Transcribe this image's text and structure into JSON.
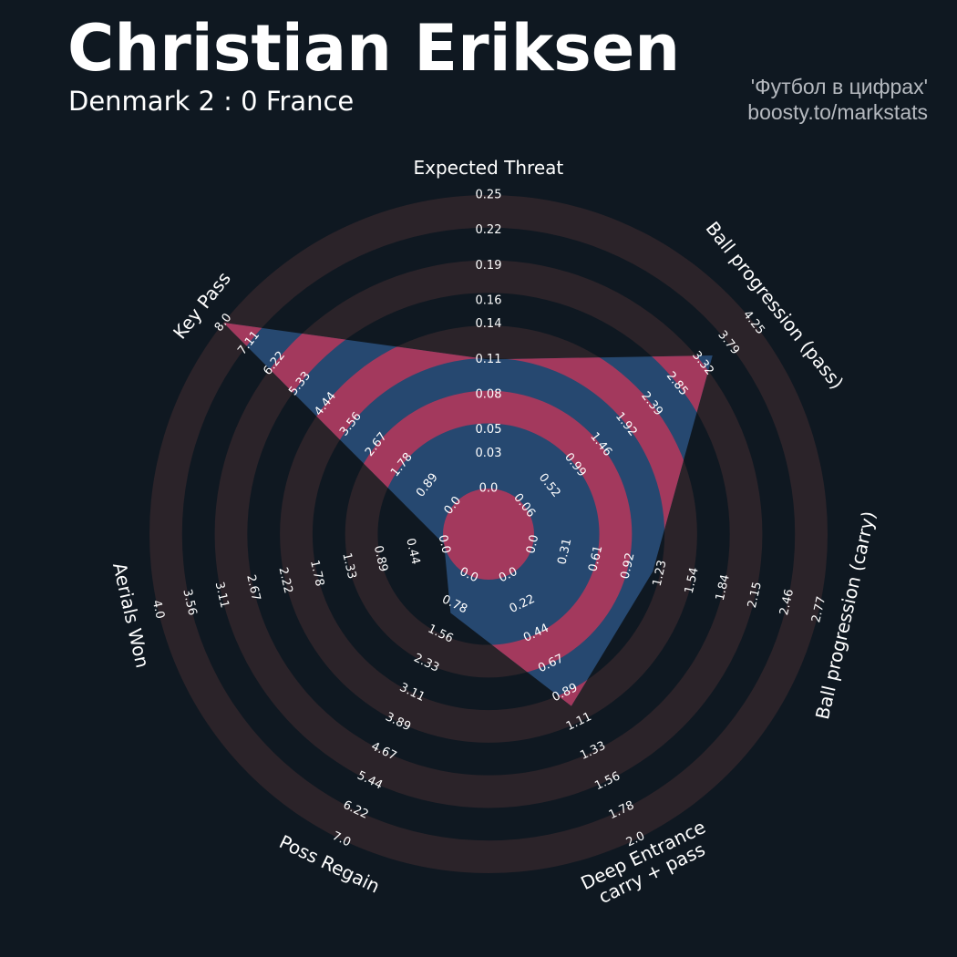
{
  "credits": [
    "'Футбол в цифрах'",
    "boosty.to/markstats"
  ],
  "chart_data": {
    "type": "radar",
    "title": "Christian Eriksen",
    "subtitle": "Denmark 2 : 0 France",
    "categories": [
      "Expected Threat",
      "Ball progression (pass)",
      "Ball progression (carry)",
      "Deep Entrance\ncarry + pass",
      "Poss Regain",
      "Aerials Won",
      "Key Pass"
    ],
    "values": [
      0.11,
      3.5,
      1.16,
      0.99,
      1.0,
      0,
      8.0
    ],
    "ranges": [
      [
        0,
        0.25
      ],
      [
        0.06,
        4.25
      ],
      [
        0,
        2.77
      ],
      [
        0,
        2.0
      ],
      [
        0,
        7.0
      ],
      [
        0,
        4.0
      ],
      [
        0,
        8.0
      ]
    ],
    "ticks": [
      [
        {
          "value": 0,
          "label": "0.0"
        },
        0.03,
        0.05,
        0.08,
        0.11,
        0.14,
        0.16,
        0.19,
        0.22,
        0.25
      ],
      [
        0.06,
        0.52,
        0.99,
        1.46,
        1.92,
        2.39,
        2.85,
        3.32,
        3.79,
        4.25
      ],
      [
        {
          "value": 0,
          "label": "0.0"
        },
        0.31,
        0.61,
        0.92,
        1.23,
        1.54,
        1.84,
        2.15,
        2.46,
        2.77
      ],
      [
        {
          "value": 0,
          "label": "0.0"
        },
        0.22,
        0.44,
        0.67,
        0.89,
        1.11,
        1.33,
        1.56,
        1.78,
        {
          "value": 2,
          "label": "2.0"
        }
      ],
      [
        {
          "value": 0,
          "label": "0.0"
        },
        0.78,
        1.56,
        2.33,
        3.11,
        3.89,
        4.67,
        5.44,
        6.22,
        {
          "value": 7,
          "label": "7.0"
        }
      ],
      [
        {
          "value": 0,
          "label": "0.0"
        },
        0.44,
        0.89,
        1.33,
        1.78,
        2.22,
        2.67,
        3.11,
        3.56,
        {
          "value": 4,
          "label": "4.0"
        }
      ],
      [
        {
          "value": 0,
          "label": "0.0"
        },
        0.89,
        1.78,
        2.67,
        3.56,
        4.44,
        5.33,
        6.22,
        7.11,
        {
          "value": 8,
          "label": "8.0"
        }
      ]
    ],
    "color": "#264870",
    "highlight_color": "#a3395d",
    "ring_color": "#2b2329"
  }
}
